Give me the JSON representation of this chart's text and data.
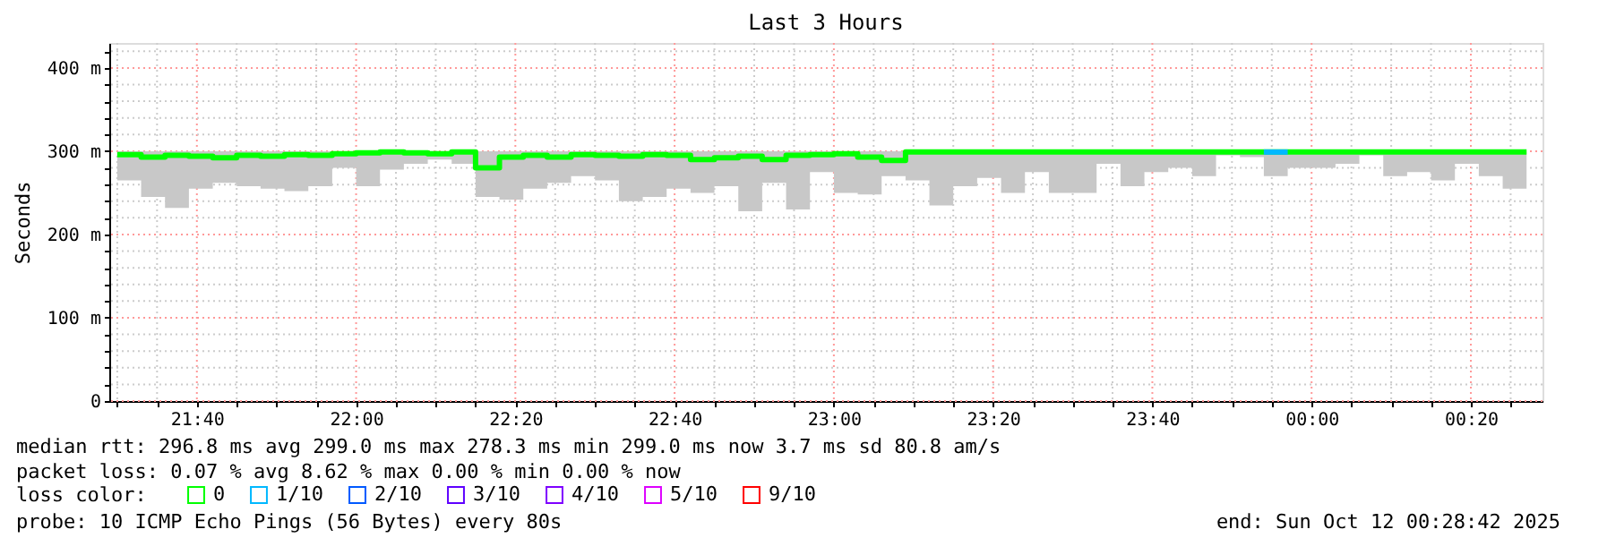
{
  "chart_data": {
    "type": "step",
    "title": "Last 3 Hours",
    "ylabel": "Seconds",
    "legend_title": "loss color:",
    "legend": "bottom",
    "grid": true,
    "x": [
      "2025-10-11T21:30",
      "2025-10-11T21:33",
      "2025-10-11T21:36",
      "2025-10-11T21:39",
      "2025-10-11T21:42",
      "2025-10-11T21:45",
      "2025-10-11T21:48",
      "2025-10-11T21:51",
      "2025-10-11T21:54",
      "2025-10-11T21:57",
      "2025-10-11T22:00",
      "2025-10-11T22:03",
      "2025-10-11T22:06",
      "2025-10-11T22:09",
      "2025-10-11T22:12",
      "2025-10-11T22:15",
      "2025-10-11T22:18",
      "2025-10-11T22:21",
      "2025-10-11T22:24",
      "2025-10-11T22:27",
      "2025-10-11T22:30",
      "2025-10-11T22:33",
      "2025-10-11T22:36",
      "2025-10-11T22:39",
      "2025-10-11T22:42",
      "2025-10-11T22:45",
      "2025-10-11T22:48",
      "2025-10-11T22:51",
      "2025-10-11T22:54",
      "2025-10-11T22:57",
      "2025-10-11T23:00",
      "2025-10-11T23:03",
      "2025-10-11T23:06",
      "2025-10-11T23:09",
      "2025-10-11T23:12",
      "2025-10-11T23:15",
      "2025-10-11T23:18",
      "2025-10-11T23:21",
      "2025-10-11T23:24",
      "2025-10-11T23:27",
      "2025-10-11T23:30",
      "2025-10-11T23:33",
      "2025-10-11T23:36",
      "2025-10-11T23:39",
      "2025-10-11T23:42",
      "2025-10-11T23:45",
      "2025-10-11T23:48",
      "2025-10-11T23:51",
      "2025-10-11T23:54",
      "2025-10-11T23:57",
      "2025-10-12T00:00",
      "2025-10-12T00:03",
      "2025-10-12T00:06",
      "2025-10-12T00:09",
      "2025-10-12T00:12",
      "2025-10-12T00:15",
      "2025-10-12T00:18",
      "2025-10-12T00:21",
      "2025-10-12T00:24",
      "2025-10-12T00:27"
    ],
    "series": [
      {
        "name": "0",
        "color": "#00ff00",
        "values": [
          296,
          293,
          295,
          294,
          292,
          295,
          294,
          296,
          295,
          297,
          298,
          299,
          298,
          297,
          299,
          280,
          293,
          295,
          293,
          296,
          295,
          294,
          296,
          295,
          290,
          292,
          294,
          290,
          295,
          296,
          297,
          293,
          289,
          299,
          299,
          299,
          299,
          299,
          299,
          299,
          299,
          299,
          299,
          299,
          299,
          299,
          299,
          299,
          299,
          299,
          299,
          299,
          299,
          299,
          299,
          299,
          299,
          299,
          299,
          299
        ],
        "lower": [
          265,
          245,
          232,
          255,
          262,
          258,
          255,
          252,
          258,
          280,
          258,
          278,
          285,
          290,
          285,
          245,
          242,
          255,
          262,
          270,
          265,
          240,
          245,
          255,
          250,
          258,
          228,
          262,
          230,
          275,
          250,
          248,
          270,
          265,
          235,
          258,
          268,
          250,
          275,
          250,
          250,
          285,
          258,
          275,
          280,
          270,
          295,
          293,
          270,
          280,
          280,
          285,
          295,
          270,
          275,
          265,
          285,
          270,
          255,
          278
        ],
        "upper": [
          300,
          300,
          300,
          300,
          300,
          300,
          300,
          300,
          300,
          300,
          300,
          300,
          300,
          300,
          300,
          300,
          300,
          300,
          300,
          300,
          300,
          300,
          300,
          300,
          300,
          300,
          300,
          300,
          300,
          300,
          300,
          300,
          300,
          300,
          300,
          300,
          300,
          300,
          300,
          300,
          300,
          300,
          300,
          300,
          300,
          300,
          300,
          300,
          300,
          300,
          300,
          300,
          300,
          300,
          300,
          300,
          300,
          300,
          300,
          300
        ]
      },
      {
        "name": "1/10",
        "color": "#00b8ff",
        "x": [
          "2025-10-11T23:54",
          "2025-10-11T23:57"
        ],
        "values": [
          299,
          299
        ]
      },
      {
        "name": "2/10",
        "color": "#0059ff",
        "values": [
          null,
          null,
          null,
          null,
          null,
          null,
          null,
          null,
          null,
          null,
          null,
          null,
          null,
          null,
          null,
          null,
          null,
          null,
          null,
          null,
          null,
          null,
          null,
          null,
          null,
          null,
          null,
          null,
          null,
          null,
          null,
          null,
          null,
          null,
          null,
          null,
          null,
          null,
          null,
          null,
          null,
          null,
          null,
          null,
          null,
          null,
          null,
          null,
          null,
          null,
          null,
          null,
          null,
          null,
          null,
          null,
          null,
          null,
          null,
          null
        ]
      },
      {
        "name": "3/10",
        "color": "#5e00ff",
        "values": [
          null,
          null,
          null,
          null,
          null,
          null,
          null,
          null,
          null,
          null,
          null,
          null,
          null,
          null,
          null,
          null,
          null,
          null,
          null,
          null,
          null,
          null,
          null,
          null,
          null,
          null,
          null,
          null,
          null,
          null,
          null,
          null,
          null,
          null,
          null,
          null,
          null,
          null,
          null,
          null,
          null,
          null,
          null,
          null,
          null,
          null,
          null,
          null,
          null,
          null,
          null,
          null,
          null,
          null,
          null,
          null,
          null,
          null,
          null,
          null
        ]
      },
      {
        "name": "4/10",
        "color": "#7e00ff",
        "values": [
          null,
          null,
          null,
          null,
          null,
          null,
          null,
          null,
          null,
          null,
          null,
          null,
          null,
          null,
          null,
          null,
          null,
          null,
          null,
          null,
          null,
          null,
          null,
          null,
          null,
          null,
          null,
          null,
          null,
          null,
          null,
          null,
          null,
          null,
          null,
          null,
          null,
          null,
          null,
          null,
          null,
          null,
          null,
          null,
          null,
          null,
          null,
          null,
          null,
          null,
          null,
          null,
          null,
          null,
          null,
          null,
          null,
          null,
          null,
          null
        ]
      },
      {
        "name": "5/10",
        "color": "#dd00ff",
        "values": [
          null,
          null,
          null,
          null,
          null,
          null,
          null,
          null,
          null,
          null,
          null,
          null,
          null,
          null,
          null,
          null,
          null,
          null,
          null,
          null,
          null,
          null,
          null,
          null,
          null,
          null,
          null,
          null,
          null,
          null,
          null,
          null,
          null,
          null,
          null,
          null,
          null,
          null,
          null,
          null,
          null,
          null,
          null,
          null,
          null,
          null,
          null,
          null,
          null,
          null,
          null,
          null,
          null,
          null,
          null,
          null,
          null,
          null,
          null,
          null
        ]
      },
      {
        "name": "9/10",
        "color": "#ff0000",
        "values": [
          null,
          null,
          null,
          null,
          null,
          null,
          null,
          null,
          null,
          null,
          null,
          null,
          null,
          null,
          null,
          null,
          null,
          null,
          null,
          null,
          null,
          null,
          null,
          null,
          null,
          null,
          null,
          null,
          null,
          null,
          null,
          null,
          null,
          null,
          null,
          null,
          null,
          null,
          null,
          null,
          null,
          null,
          null,
          null,
          null,
          null,
          null,
          null,
          null,
          null,
          null,
          null,
          null,
          null,
          null,
          null,
          null,
          null,
          null,
          null
        ]
      }
    ],
    "xlim": [
      "2025-10-11T21:29",
      "2025-10-12T00:29"
    ],
    "ylim": [
      0,
      430
    ],
    "xticks": [
      {
        "value": "2025-10-11T21:30",
        "label": null
      },
      {
        "value": "2025-10-11T21:35",
        "label": null
      },
      {
        "value": "2025-10-11T21:40",
        "label": "21:40"
      },
      {
        "value": "2025-10-11T21:45",
        "label": null
      },
      {
        "value": "2025-10-11T21:50",
        "label": null
      },
      {
        "value": "2025-10-11T21:55",
        "label": null
      },
      {
        "value": "2025-10-11T22:00",
        "label": "22:00"
      },
      {
        "value": "2025-10-11T22:05",
        "label": null
      },
      {
        "value": "2025-10-11T22:10",
        "label": null
      },
      {
        "value": "2025-10-11T22:15",
        "label": null
      },
      {
        "value": "2025-10-11T22:20",
        "label": "22:20"
      },
      {
        "value": "2025-10-11T22:25",
        "label": null
      },
      {
        "value": "2025-10-11T22:30",
        "label": null
      },
      {
        "value": "2025-10-11T22:35",
        "label": null
      },
      {
        "value": "2025-10-11T22:40",
        "label": "22:40"
      },
      {
        "value": "2025-10-11T22:45",
        "label": null
      },
      {
        "value": "2025-10-11T22:50",
        "label": null
      },
      {
        "value": "2025-10-11T22:55",
        "label": null
      },
      {
        "value": "2025-10-11T23:00",
        "label": "23:00"
      },
      {
        "value": "2025-10-11T23:05",
        "label": null
      },
      {
        "value": "2025-10-11T23:10",
        "label": null
      },
      {
        "value": "2025-10-11T23:15",
        "label": null
      },
      {
        "value": "2025-10-11T23:20",
        "label": "23:20"
      },
      {
        "value": "2025-10-11T23:25",
        "label": null
      },
      {
        "value": "2025-10-11T23:30",
        "label": null
      },
      {
        "value": "2025-10-11T23:35",
        "label": null
      },
      {
        "value": "2025-10-11T23:40",
        "label": "23:40"
      },
      {
        "value": "2025-10-11T23:45",
        "label": null
      },
      {
        "value": "2025-10-11T23:50",
        "label": null
      },
      {
        "value": "2025-10-11T23:55",
        "label": null
      },
      {
        "value": "2025-10-12T00:00",
        "label": "00:00"
      },
      {
        "value": "2025-10-12T00:05",
        "label": null
      },
      {
        "value": "2025-10-12T00:10",
        "label": null
      },
      {
        "value": "2025-10-12T00:15",
        "label": null
      },
      {
        "value": "2025-10-12T00:20",
        "label": "00:20"
      },
      {
        "value": "2025-10-12T00:25",
        "label": null
      }
    ],
    "yticks": [
      0,
      {
        "value": 20,
        "label": null
      },
      {
        "value": 40,
        "label": null
      },
      {
        "value": 60,
        "label": null
      },
      {
        "value": 80,
        "label": null
      },
      {
        "value": 100,
        "label": "100 m"
      },
      {
        "value": 120,
        "label": null
      },
      {
        "value": 140,
        "label": null
      },
      {
        "value": 160,
        "label": null
      },
      {
        "value": 180,
        "label": null
      },
      {
        "value": 200,
        "label": "200 m"
      },
      {
        "value": 220,
        "label": null
      },
      {
        "value": 240,
        "label": null
      },
      {
        "value": 260,
        "label": null
      },
      {
        "value": 280,
        "label": null
      },
      {
        "value": 300,
        "label": "300 m"
      },
      {
        "value": 320,
        "label": null
      },
      {
        "value": 340,
        "label": null
      },
      {
        "value": 360,
        "label": null
      },
      {
        "value": 380,
        "label": null
      },
      {
        "value": 400,
        "label": "400 m"
      },
      {
        "value": 420,
        "label": null
      }
    ],
    "annotations": [
      "median rtt:  296.8 ms avg  299.0 ms max  278.3 ms min  299.0 ms now  3.7 ms sd  80.8   am/s",
      "packet loss: 0.07 % avg  8.62 % max  0.00 % min  0.00 % now",
      "probe:       10 ICMP Echo Pings (56 Bytes) every 80s",
      "end: Sun Oct 12 00:28:42 2025"
    ]
  }
}
